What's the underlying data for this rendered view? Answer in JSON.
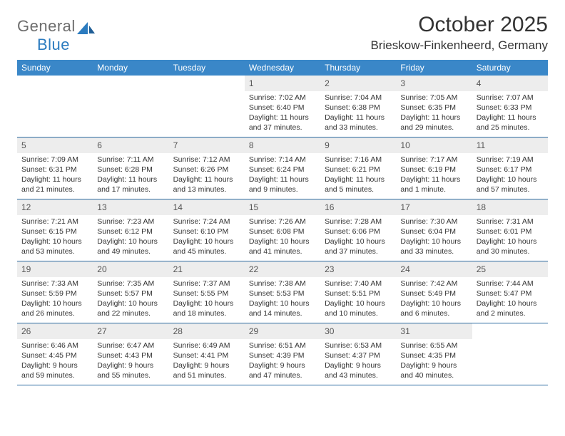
{
  "logo": {
    "top": "General",
    "bottom": "Blue"
  },
  "title": "October 2025",
  "location": "Brieskow-Finkenheerd, Germany",
  "colors": {
    "header_bg": "#3a87c8",
    "header_text": "#ffffff",
    "daynum_bg": "#ededed",
    "rule": "#2b6aa0",
    "logo_gray": "#6d6d6d",
    "logo_blue": "#2b7bbf"
  },
  "dow": [
    "Sunday",
    "Monday",
    "Tuesday",
    "Wednesday",
    "Thursday",
    "Friday",
    "Saturday"
  ],
  "weeks": [
    [
      {
        "n": "",
        "sr": "",
        "ss": "",
        "dl": ""
      },
      {
        "n": "",
        "sr": "",
        "ss": "",
        "dl": ""
      },
      {
        "n": "",
        "sr": "",
        "ss": "",
        "dl": ""
      },
      {
        "n": "1",
        "sr": "Sunrise: 7:02 AM",
        "ss": "Sunset: 6:40 PM",
        "dl": "Daylight: 11 hours and 37 minutes."
      },
      {
        "n": "2",
        "sr": "Sunrise: 7:04 AM",
        "ss": "Sunset: 6:38 PM",
        "dl": "Daylight: 11 hours and 33 minutes."
      },
      {
        "n": "3",
        "sr": "Sunrise: 7:05 AM",
        "ss": "Sunset: 6:35 PM",
        "dl": "Daylight: 11 hours and 29 minutes."
      },
      {
        "n": "4",
        "sr": "Sunrise: 7:07 AM",
        "ss": "Sunset: 6:33 PM",
        "dl": "Daylight: 11 hours and 25 minutes."
      }
    ],
    [
      {
        "n": "5",
        "sr": "Sunrise: 7:09 AM",
        "ss": "Sunset: 6:31 PM",
        "dl": "Daylight: 11 hours and 21 minutes."
      },
      {
        "n": "6",
        "sr": "Sunrise: 7:11 AM",
        "ss": "Sunset: 6:28 PM",
        "dl": "Daylight: 11 hours and 17 minutes."
      },
      {
        "n": "7",
        "sr": "Sunrise: 7:12 AM",
        "ss": "Sunset: 6:26 PM",
        "dl": "Daylight: 11 hours and 13 minutes."
      },
      {
        "n": "8",
        "sr": "Sunrise: 7:14 AM",
        "ss": "Sunset: 6:24 PM",
        "dl": "Daylight: 11 hours and 9 minutes."
      },
      {
        "n": "9",
        "sr": "Sunrise: 7:16 AM",
        "ss": "Sunset: 6:21 PM",
        "dl": "Daylight: 11 hours and 5 minutes."
      },
      {
        "n": "10",
        "sr": "Sunrise: 7:17 AM",
        "ss": "Sunset: 6:19 PM",
        "dl": "Daylight: 11 hours and 1 minute."
      },
      {
        "n": "11",
        "sr": "Sunrise: 7:19 AM",
        "ss": "Sunset: 6:17 PM",
        "dl": "Daylight: 10 hours and 57 minutes."
      }
    ],
    [
      {
        "n": "12",
        "sr": "Sunrise: 7:21 AM",
        "ss": "Sunset: 6:15 PM",
        "dl": "Daylight: 10 hours and 53 minutes."
      },
      {
        "n": "13",
        "sr": "Sunrise: 7:23 AM",
        "ss": "Sunset: 6:12 PM",
        "dl": "Daylight: 10 hours and 49 minutes."
      },
      {
        "n": "14",
        "sr": "Sunrise: 7:24 AM",
        "ss": "Sunset: 6:10 PM",
        "dl": "Daylight: 10 hours and 45 minutes."
      },
      {
        "n": "15",
        "sr": "Sunrise: 7:26 AM",
        "ss": "Sunset: 6:08 PM",
        "dl": "Daylight: 10 hours and 41 minutes."
      },
      {
        "n": "16",
        "sr": "Sunrise: 7:28 AM",
        "ss": "Sunset: 6:06 PM",
        "dl": "Daylight: 10 hours and 37 minutes."
      },
      {
        "n": "17",
        "sr": "Sunrise: 7:30 AM",
        "ss": "Sunset: 6:04 PM",
        "dl": "Daylight: 10 hours and 33 minutes."
      },
      {
        "n": "18",
        "sr": "Sunrise: 7:31 AM",
        "ss": "Sunset: 6:01 PM",
        "dl": "Daylight: 10 hours and 30 minutes."
      }
    ],
    [
      {
        "n": "19",
        "sr": "Sunrise: 7:33 AM",
        "ss": "Sunset: 5:59 PM",
        "dl": "Daylight: 10 hours and 26 minutes."
      },
      {
        "n": "20",
        "sr": "Sunrise: 7:35 AM",
        "ss": "Sunset: 5:57 PM",
        "dl": "Daylight: 10 hours and 22 minutes."
      },
      {
        "n": "21",
        "sr": "Sunrise: 7:37 AM",
        "ss": "Sunset: 5:55 PM",
        "dl": "Daylight: 10 hours and 18 minutes."
      },
      {
        "n": "22",
        "sr": "Sunrise: 7:38 AM",
        "ss": "Sunset: 5:53 PM",
        "dl": "Daylight: 10 hours and 14 minutes."
      },
      {
        "n": "23",
        "sr": "Sunrise: 7:40 AM",
        "ss": "Sunset: 5:51 PM",
        "dl": "Daylight: 10 hours and 10 minutes."
      },
      {
        "n": "24",
        "sr": "Sunrise: 7:42 AM",
        "ss": "Sunset: 5:49 PM",
        "dl": "Daylight: 10 hours and 6 minutes."
      },
      {
        "n": "25",
        "sr": "Sunrise: 7:44 AM",
        "ss": "Sunset: 5:47 PM",
        "dl": "Daylight: 10 hours and 2 minutes."
      }
    ],
    [
      {
        "n": "26",
        "sr": "Sunrise: 6:46 AM",
        "ss": "Sunset: 4:45 PM",
        "dl": "Daylight: 9 hours and 59 minutes."
      },
      {
        "n": "27",
        "sr": "Sunrise: 6:47 AM",
        "ss": "Sunset: 4:43 PM",
        "dl": "Daylight: 9 hours and 55 minutes."
      },
      {
        "n": "28",
        "sr": "Sunrise: 6:49 AM",
        "ss": "Sunset: 4:41 PM",
        "dl": "Daylight: 9 hours and 51 minutes."
      },
      {
        "n": "29",
        "sr": "Sunrise: 6:51 AM",
        "ss": "Sunset: 4:39 PM",
        "dl": "Daylight: 9 hours and 47 minutes."
      },
      {
        "n": "30",
        "sr": "Sunrise: 6:53 AM",
        "ss": "Sunset: 4:37 PM",
        "dl": "Daylight: 9 hours and 43 minutes."
      },
      {
        "n": "31",
        "sr": "Sunrise: 6:55 AM",
        "ss": "Sunset: 4:35 PM",
        "dl": "Daylight: 9 hours and 40 minutes."
      },
      {
        "n": "",
        "sr": "",
        "ss": "",
        "dl": ""
      }
    ]
  ]
}
